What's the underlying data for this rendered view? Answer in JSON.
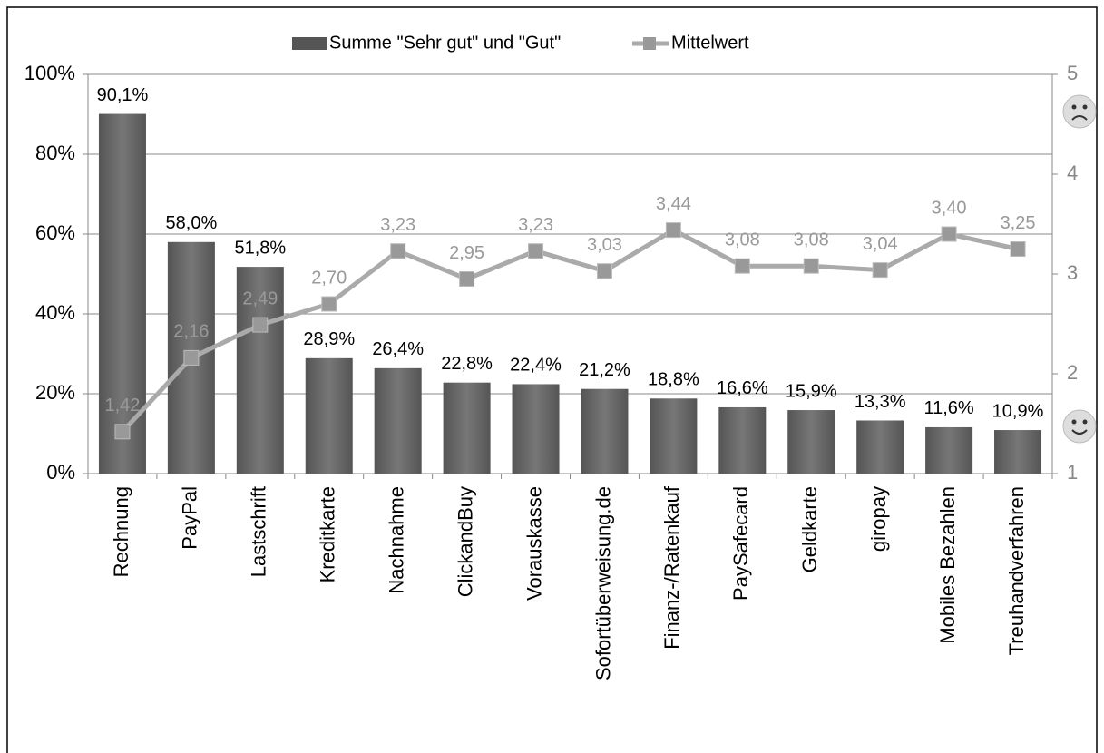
{
  "chart_data": {
    "type": "bar",
    "categories": [
      "Rechnung",
      "PayPal",
      "Lastschrift",
      "Kreditkarte",
      "Nachnahme",
      "ClickandBuy",
      "Vorauskasse",
      "Sofortüberweisung.de",
      "Finanz-/Ratenkauf",
      "PaySafecard",
      "Geldkarte",
      "giropay",
      "Mobiles Bezahlen",
      "Treuhandverfahren"
    ],
    "series": [
      {
        "name": "Summe \"Sehr gut\" und \"Gut\"",
        "type": "bar",
        "color": "#555555",
        "values": [
          90.1,
          58.0,
          51.8,
          28.9,
          26.4,
          22.8,
          22.4,
          21.2,
          18.8,
          16.6,
          15.9,
          13.3,
          11.6,
          10.9
        ],
        "value_labels": [
          "90,1%",
          "58,0%",
          "51,8%",
          "28,9%",
          "26,4%",
          "22,8%",
          "22,4%",
          "21,2%",
          "18,8%",
          "16,6%",
          "15,9%",
          "13,3%",
          "11,6%",
          "10,9%"
        ]
      },
      {
        "name": "Mittelwert",
        "type": "line",
        "axis": "y2",
        "color": "#aaaaaa",
        "values": [
          1.42,
          2.16,
          2.49,
          2.7,
          3.23,
          2.95,
          3.23,
          3.03,
          3.44,
          3.08,
          3.08,
          3.04,
          3.4,
          3.25
        ],
        "value_labels": [
          "1,42",
          "2,16",
          "2,49",
          "2,70",
          "3,23",
          "2,95",
          "3,23",
          "3,03",
          "3,44",
          "3,08",
          "3,08",
          "3,04",
          "3,40",
          "3,25"
        ]
      }
    ],
    "ylim": [
      0,
      100
    ],
    "yticks": [
      {
        "value": 0,
        "label": "0%"
      },
      {
        "value": 20,
        "label": "20%"
      },
      {
        "value": 40,
        "label": "40%"
      },
      {
        "value": 60,
        "label": "60%"
      },
      {
        "value": 80,
        "label": "80%"
      },
      {
        "value": 100,
        "label": "100%"
      }
    ],
    "y2lim": [
      1,
      5
    ],
    "y2ticks": [
      1,
      2,
      3,
      4,
      5
    ],
    "grid": true,
    "legend": "top"
  }
}
